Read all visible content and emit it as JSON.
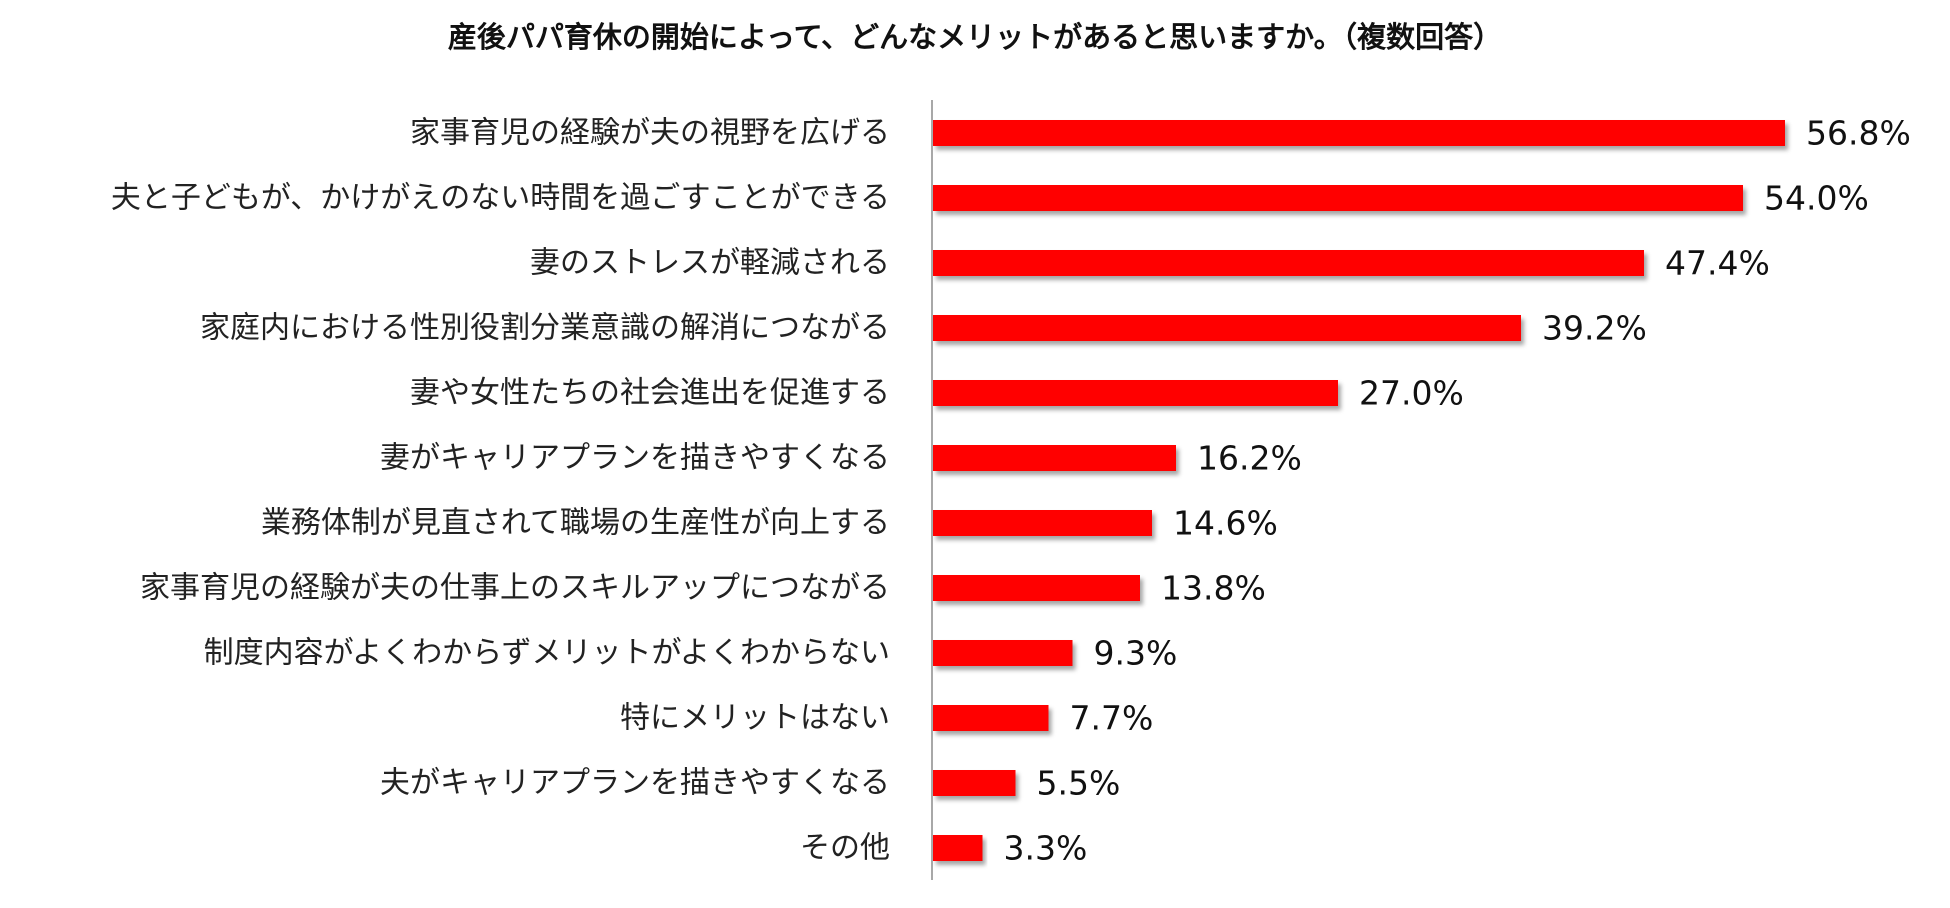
{
  "chart_data": {
    "type": "bar",
    "orientation": "horizontal",
    "title": "産後パパ育休の開始によって、どんなメリットがあると思いますか。（複数回答）",
    "categories": [
      "家事育児の経験が夫の視野を広げる",
      "夫と子どもが、かけがえのない時間を過ごすことができる",
      "妻のストレスが軽減される",
      "家庭内における性別役割分業意識の解消につながる",
      "妻や女性たちの社会進出を促進する",
      "妻がキャリアプランを描きやすくなる",
      "業務体制が見直されて職場の生産性が向上する",
      "家事育児の経験が夫の仕事上のスキルアップにつながる",
      "制度内容がよくわからずメリットがよくわからない",
      "特にメリットはない",
      "夫がキャリアプランを描きやすくなる",
      "その他"
    ],
    "values": [
      56.8,
      54.0,
      47.4,
      39.2,
      27.0,
      16.2,
      14.6,
      13.8,
      9.3,
      7.7,
      5.5,
      3.3
    ],
    "value_labels": [
      "56.8%",
      "54.0%",
      "47.4%",
      "39.2%",
      "27.0%",
      "16.2%",
      "14.6%",
      "13.8%",
      "9.3%",
      "7.7%",
      "5.5%",
      "3.3%"
    ],
    "unit": "%",
    "xlim": [
      0,
      60
    ],
    "bar_color": "#ff0000",
    "axis_color": "#8c8c8c",
    "grid": false,
    "legend": "none"
  }
}
